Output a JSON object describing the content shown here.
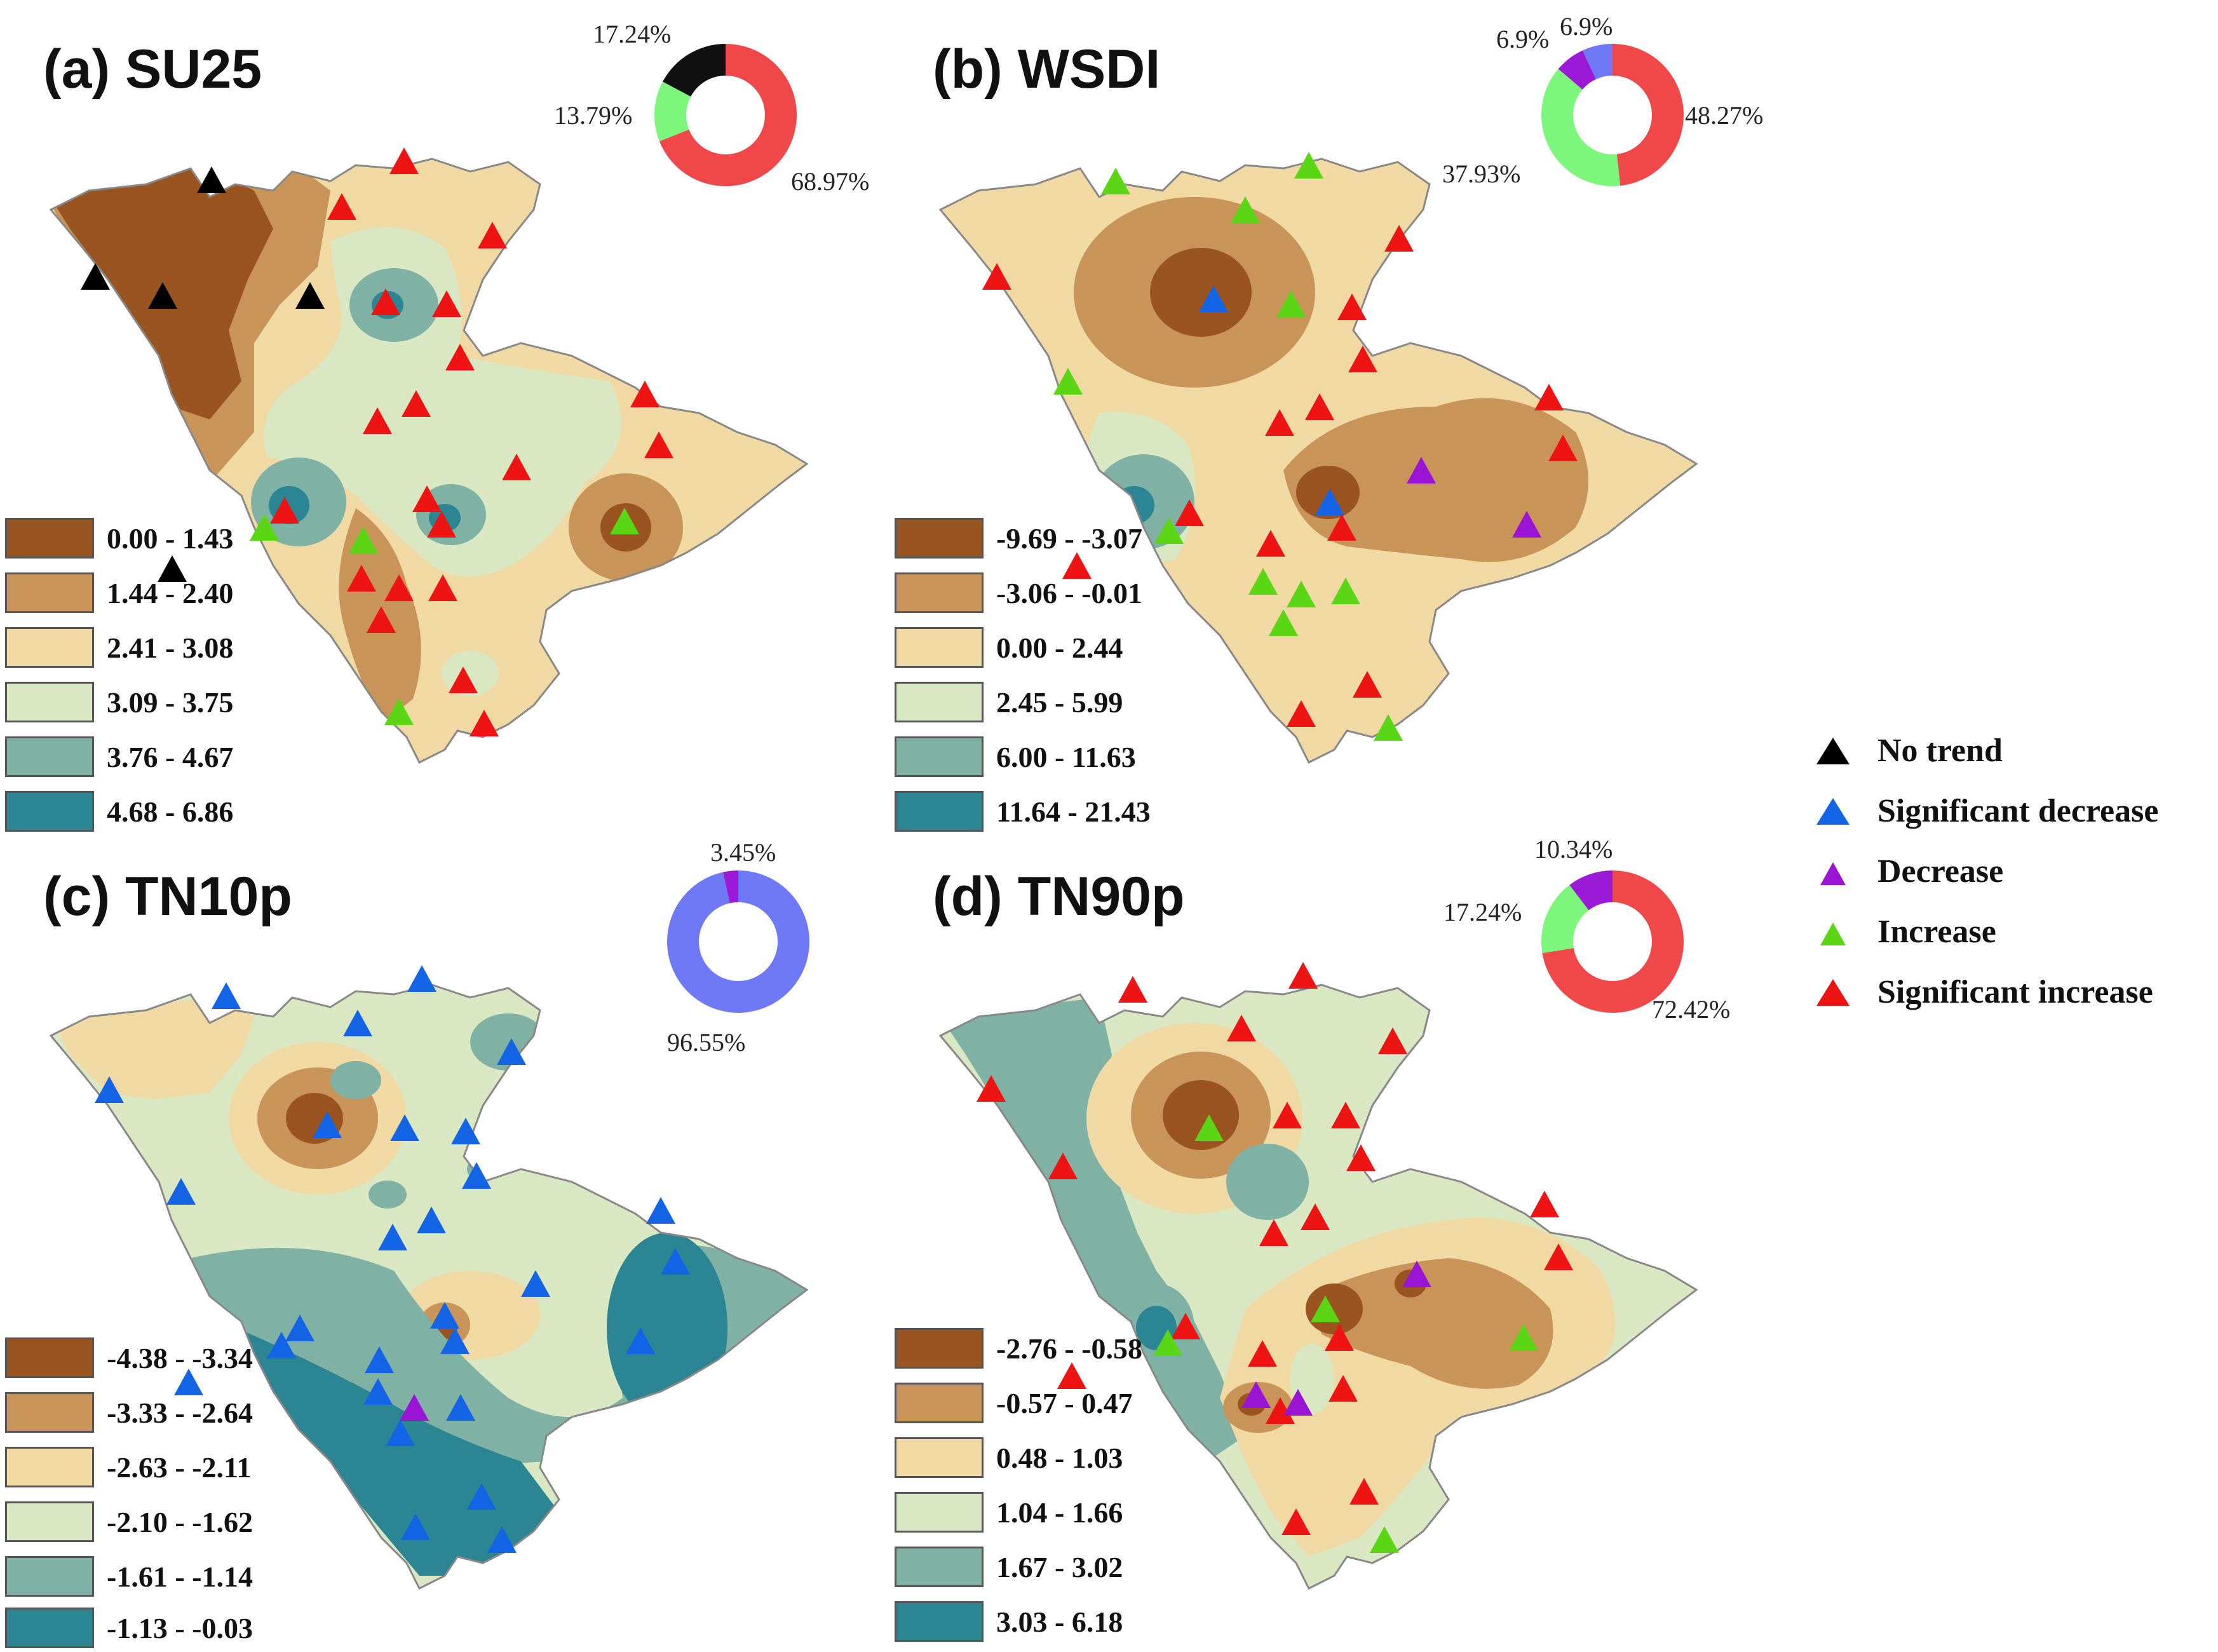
{
  "colors": {
    "no_trend": "#000000",
    "significant_decrease": "#1464e6",
    "decrease": "#9a14d6",
    "increase": "#5ad614",
    "significant_increase": "#ef1414",
    "donut_red": "#f04848",
    "donut_green": "#7cf77c",
    "donut_black": "#111111",
    "donut_purple": "#9a1ad8",
    "donut_blue": "#6f78f5",
    "class_colors": [
      "#9a5420",
      "#c89457",
      "#f1d9a4",
      "#d9e8c2",
      "#7fb2a4",
      "#2c8592"
    ]
  },
  "trend_key": {
    "items": [
      {
        "key": "no_trend",
        "label": "No trend"
      },
      {
        "key": "significant_decrease",
        "label": "Significant decrease"
      },
      {
        "key": "decrease",
        "label": "Decrease"
      },
      {
        "key": "increase",
        "label": "Increase"
      },
      {
        "key": "significant_increase",
        "label": "Significant increase"
      }
    ]
  },
  "panels": [
    {
      "id": "a",
      "title": "(a) SU25",
      "legend": [
        "0.00 - 1.43",
        "1.44 - 2.40",
        "2.41 - 3.08",
        "3.09 - 3.75",
        "3.76 - 4.67",
        "4.68 - 6.86"
      ],
      "donut": [
        {
          "key": "significant_increase",
          "value": 68.97,
          "label": "68.97%"
        },
        {
          "key": "increase",
          "value": 13.79,
          "label": "13.79%"
        },
        {
          "key": "no_trend",
          "value": 17.24,
          "label": "17.24%"
        }
      ]
    },
    {
      "id": "b",
      "title": "(b) WSDI",
      "legend": [
        "-9.69 - -3.07",
        "-3.06 - -0.01",
        "0.00 - 2.44",
        "2.45 - 5.99",
        "6.00 - 11.63",
        "11.64 - 21.43"
      ],
      "donut": [
        {
          "key": "significant_increase",
          "value": 48.27,
          "label": "48.27%"
        },
        {
          "key": "increase",
          "value": 37.93,
          "label": "37.93%"
        },
        {
          "key": "decrease",
          "value": 6.9,
          "label": "6.9%"
        },
        {
          "key": "significant_decrease",
          "value": 6.9,
          "label": "6.9%"
        }
      ]
    },
    {
      "id": "c",
      "title": "(c) TN10p",
      "legend": [
        "-4.38 - -3.34",
        "-3.33 - -2.64",
        "-2.63 - -2.11",
        "-2.10 - -1.62",
        "-1.61 - -1.14",
        "-1.13 - -0.03"
      ],
      "donut": [
        {
          "key": "significant_decrease",
          "value": 96.55,
          "label": "96.55%"
        },
        {
          "key": "decrease",
          "value": 3.45,
          "label": "3.45%"
        }
      ]
    },
    {
      "id": "d",
      "title": "(d) TN90p",
      "legend": [
        "-2.76 - -0.58",
        "-0.57 - 0.47",
        "0.48 - 1.03",
        "1.04 - 1.66",
        "1.67 - 3.02",
        "3.03 - 6.18"
      ],
      "donut": [
        {
          "key": "significant_increase",
          "value": 72.42,
          "label": "72.42%"
        },
        {
          "key": "increase",
          "value": 17.24,
          "label": "17.24%"
        },
        {
          "key": "decrease",
          "value": 10.34,
          "label": "10.34%"
        }
      ]
    }
  ]
}
